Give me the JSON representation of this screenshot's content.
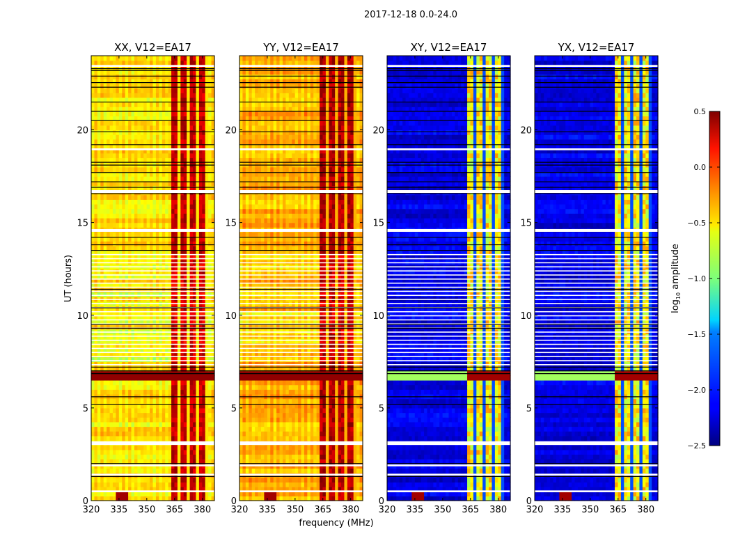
{
  "chart_data": {
    "type": "heatmap",
    "title": "2017-12-18 0.0-24.0",
    "xlabel": "frequency (MHz)",
    "ylabel": "UT (hours)",
    "xlim": [
      320,
      386.5
    ],
    "ylim": [
      0,
      24
    ],
    "xticks": [
      320,
      335,
      350,
      365,
      380
    ],
    "yticks": [
      0,
      5,
      10,
      15,
      20
    ],
    "colorbar": {
      "label": "log10 amplitude",
      "label_main": "log",
      "label_sub": "10",
      "label_rest": " amplitude",
      "range": [
        -2.5,
        0.5
      ],
      "ticks": [
        0.5,
        0.0,
        -0.5,
        -1.0,
        -1.5,
        -2.0,
        -2.5
      ],
      "tick_labels": [
        "0.5",
        "0.0",
        "−0.5",
        "−1.0",
        "−1.5",
        "−2.0",
        "−2.5"
      ],
      "colormap": "jet"
    },
    "panels": [
      {
        "title": "XX, V12=EA17",
        "base": -0.55,
        "band": 0.15,
        "style": "parallel"
      },
      {
        "title": "YY, V12=EA17",
        "base": -0.4,
        "band": 0.2,
        "style": "parallel"
      },
      {
        "title": "XY, V12=EA17",
        "base": -2.2,
        "band": -0.8,
        "style": "cross"
      },
      {
        "title": "YX, V12=EA17",
        "base": -2.2,
        "band": -0.8,
        "style": "cross"
      }
    ],
    "bright_band_MHz": [
      363,
      383
    ],
    "rfi_source": {
      "freq_MHz": 337,
      "ut_hours": 0.2
    },
    "flagged_gaps_hours": [
      [
        0.45,
        0.55
      ],
      [
        1.35,
        1.45
      ],
      [
        1.85,
        1.95
      ],
      [
        3.0,
        3.2
      ],
      [
        14.5,
        14.65
      ],
      [
        16.6,
        16.75
      ],
      [
        18.9,
        19.0
      ],
      [
        23.4,
        23.5
      ]
    ],
    "black_lines_hours": [
      1.3,
      2.0,
      5.2,
      5.6,
      6.85,
      7.0,
      7.2,
      9.3,
      9.5,
      10.4,
      11.4,
      13.5,
      13.8,
      14.2,
      16.55,
      16.9,
      17.2,
      17.7,
      18.1,
      18.25,
      19.2,
      19.9,
      20.5,
      21.0,
      21.5,
      22.3,
      22.55,
      22.9,
      23.2,
      23.3
    ]
  }
}
